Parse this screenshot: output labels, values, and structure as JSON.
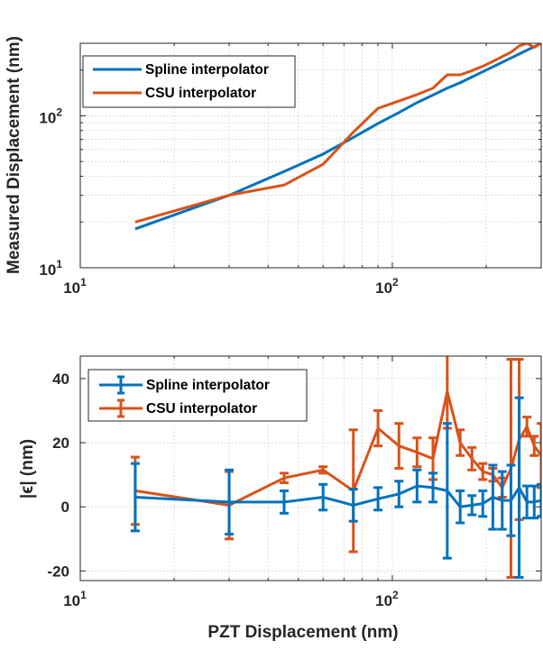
{
  "colors": {
    "spline": "#0072BD",
    "csu": "#D95319",
    "axis": "#262626",
    "grid": "#c8c8c8"
  },
  "chart_data": [
    {
      "type": "line",
      "scale": {
        "x": "log",
        "y": "log"
      },
      "xlim": [
        10,
        300
      ],
      "ylim": [
        10,
        300
      ],
      "xticks": [
        10,
        100
      ],
      "xtick_labels": [
        {
          "base": "10",
          "exp": "1"
        },
        {
          "base": "10",
          "exp": "2"
        }
      ],
      "yticks": [
        10,
        100
      ],
      "ytick_labels": [
        {
          "base": "10",
          "exp": "1"
        },
        {
          "base": "10",
          "exp": "2"
        }
      ],
      "xlabel": "",
      "ylabel": "Measured Displacement (nm)",
      "grid": true,
      "legend_position": "top-left",
      "series": [
        {
          "name": "Spline interpolator",
          "x": [
            15,
            30,
            45,
            60,
            75,
            90,
            105,
            120,
            135,
            150,
            165,
            180,
            195,
            210,
            225,
            240,
            255,
            270,
            285,
            300
          ],
          "y": [
            18,
            30,
            43,
            56,
            72,
            89,
            105,
            122,
            137,
            152,
            165,
            180,
            195,
            210,
            225,
            240,
            255,
            270,
            285,
            300
          ]
        },
        {
          "name": "CSU interpolator",
          "x": [
            15,
            30,
            45,
            60,
            75,
            90,
            105,
            120,
            135,
            150,
            165,
            180,
            195,
            210,
            225,
            240,
            255,
            270,
            285,
            300
          ],
          "y": [
            20,
            30,
            35,
            48,
            78,
            112,
            125,
            138,
            152,
            186,
            186,
            198,
            212,
            228,
            245,
            262,
            288,
            300,
            282,
            300
          ]
        }
      ]
    },
    {
      "type": "line",
      "errorbars": true,
      "scale": {
        "x": "log",
        "y": "linear"
      },
      "xlim": [
        10,
        300
      ],
      "ylim": [
        -23,
        47
      ],
      "xticks": [
        10,
        100
      ],
      "xtick_labels": [
        {
          "base": "10",
          "exp": "1"
        },
        {
          "base": "10",
          "exp": "2"
        }
      ],
      "yticks": [
        -20,
        0,
        20,
        40
      ],
      "ytick_labels": [
        "-20",
        "0",
        "20",
        "40"
      ],
      "xlabel": "PZT Displacement (nm)",
      "ylabel": "|ϵ| (nm)",
      "grid": true,
      "legend_position": "top-left",
      "series": [
        {
          "name": "Spline interpolator",
          "x": [
            15,
            30,
            45,
            60,
            75,
            90,
            105,
            120,
            135,
            150,
            165,
            180,
            195,
            210,
            225,
            240,
            255,
            270,
            285,
            300
          ],
          "y": [
            3,
            1.5,
            1.5,
            3,
            0.5,
            2.5,
            4,
            6.5,
            6,
            5,
            0,
            0.5,
            1,
            3,
            2,
            2,
            6,
            1.5,
            1.5,
            2
          ],
          "err": [
            10.5,
            10,
            3.5,
            4,
            5,
            3.5,
            4,
            5,
            4.5,
            21,
            5,
            3,
            4,
            10,
            9,
            11,
            28,
            5,
            5,
            5
          ]
        },
        {
          "name": "CSU interpolator",
          "x": [
            15,
            30,
            45,
            60,
            75,
            90,
            105,
            120,
            135,
            150,
            165,
            180,
            195,
            210,
            225,
            240,
            255,
            270,
            285,
            300
          ],
          "y": [
            5,
            0.5,
            9,
            11.5,
            5,
            24.5,
            19,
            17,
            15,
            36,
            20,
            15,
            11,
            10,
            6,
            12,
            21,
            25,
            19,
            16
          ],
          "err": [
            10.5,
            10.5,
            1.5,
            1,
            19,
            5.5,
            7,
            4.5,
            6.5,
            11.5,
            4,
            3.5,
            2.5,
            2,
            3,
            34,
            25,
            3,
            3,
            10
          ]
        }
      ]
    }
  ]
}
